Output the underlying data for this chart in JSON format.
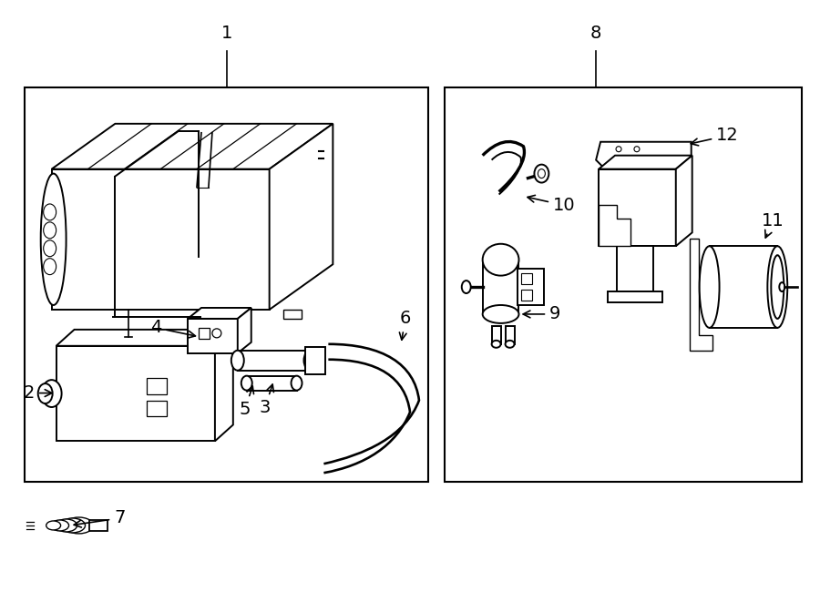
{
  "bg_color": "#ffffff",
  "line_color": "#000000",
  "fig_width": 9.0,
  "fig_height": 6.61,
  "dpi": 100,
  "font_size_label": 14
}
